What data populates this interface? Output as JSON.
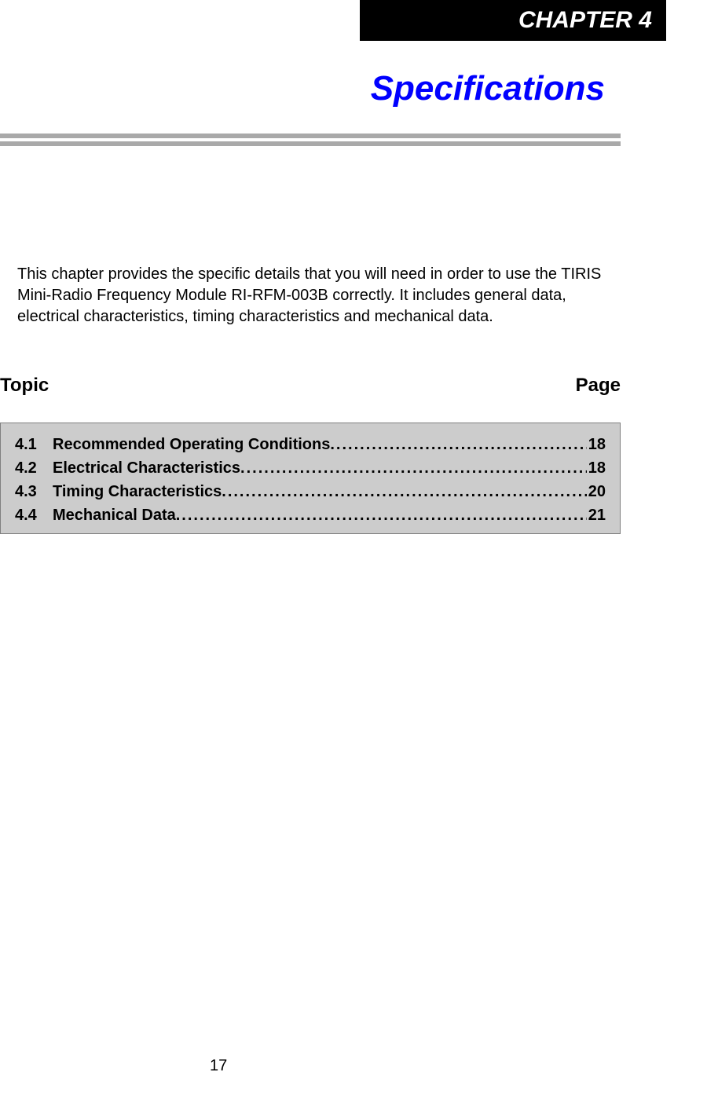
{
  "chapter": {
    "banner_text": "CHAPTER 4",
    "title": "Specifications",
    "title_color": "#0000ff",
    "banner_bg": "#000000",
    "banner_text_color": "#ffffff"
  },
  "intro": {
    "text": "This chapter provides the specific details that you will need in order to use the TIRIS Mini-Radio Frequency Module RI-RFM-003B correctly. It includes general data, electrical characteristics, timing characteristics and mechanical data."
  },
  "toc_header": {
    "left": "Topic",
    "right": "Page"
  },
  "toc": {
    "box_bg": "#cccccc",
    "box_border": "#808080",
    "items": [
      {
        "num": "4.1",
        "title": "Recommended Operating Conditions",
        "page": "18"
      },
      {
        "num": "4.2",
        "title": "Electrical Characteristics",
        "page": "18"
      },
      {
        "num": "4.3",
        "title": "Timing Characteristics",
        "page": "20"
      },
      {
        "num": "4.4",
        "title": "Mechanical Data",
        "page": "21"
      }
    ]
  },
  "divider": {
    "color": "#a9a9a9"
  },
  "page_number": "17"
}
